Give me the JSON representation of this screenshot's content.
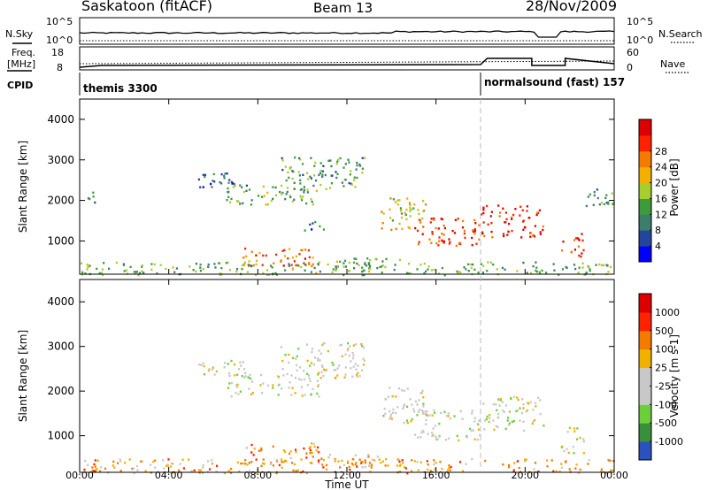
{
  "header": {
    "station": "Saskatoon (fitACF)",
    "beam": "Beam 13",
    "date": "28/Nov/2009"
  },
  "noise_panel": {
    "left_label": "N.Sky",
    "right_label": "N.Search",
    "left_ticks": [
      "10^5",
      "10^0"
    ],
    "right_ticks": [
      "10^5",
      "10^0"
    ]
  },
  "freq_panel": {
    "left_label_line1": "Freq.",
    "left_label_line2": "[MHz]",
    "right_label": "Nave",
    "left_ticks": [
      "18",
      "8"
    ],
    "right_ticks": [
      "60",
      "0"
    ]
  },
  "cpid": {
    "label": "CPID",
    "modes": [
      {
        "name": "themis 3300",
        "start_hour": 0,
        "end_hour": 18
      },
      {
        "name": "normalsound (fast) 157",
        "start_hour": 18,
        "end_hour": 24
      }
    ]
  },
  "chart_data": [
    {
      "type": "heatmap",
      "name": "power",
      "ylabel": "Slant Range [km]",
      "ylim": [
        180,
        4500
      ],
      "yticks": [
        1000,
        2000,
        3000,
        4000
      ],
      "xlim": [
        0,
        24
      ],
      "colorbar_label": "Power [dB]",
      "colorbar_ticks": [
        "4",
        "8",
        "12",
        "16",
        "20",
        "24",
        "28"
      ],
      "colors": [
        "#0000ff",
        "#22469e",
        "#3d7d6c",
        "#3d9b3d",
        "#a5ce2e",
        "#f4b000",
        "#f47a00",
        "#ff2200",
        "#dd0000"
      ],
      "regions": [
        {
          "x": [
            0.3,
            0.7
          ],
          "y": [
            1850,
            2250
          ],
          "level": 0.35
        },
        {
          "x": [
            5.3,
            7.5
          ],
          "y": [
            2300,
            2700
          ],
          "level": 0.2
        },
        {
          "x": [
            6.5,
            10.8
          ],
          "y": [
            1900,
            2400
          ],
          "level": 0.4
        },
        {
          "x": [
            9.0,
            12.8
          ],
          "y": [
            2300,
            3100
          ],
          "level": 0.35
        },
        {
          "x": [
            10.0,
            11.0
          ],
          "y": [
            1250,
            1500
          ],
          "level": 0.25
        },
        {
          "x": [
            7.3,
            10.8
          ],
          "y": [
            400,
            850
          ],
          "level": 0.75
        },
        {
          "x": [
            10.8,
            14.5
          ],
          "y": [
            350,
            600
          ],
          "level": 0.45
        },
        {
          "x": [
            13.5,
            15.5
          ],
          "y": [
            1300,
            2100
          ],
          "level": 0.55
        },
        {
          "x": [
            15.0,
            18.0
          ],
          "y": [
            900,
            1600
          ],
          "level": 0.85
        },
        {
          "x": [
            18.0,
            20.8
          ],
          "y": [
            1100,
            1900
          ],
          "level": 0.9
        },
        {
          "x": [
            21.6,
            22.6
          ],
          "y": [
            600,
            1200
          ],
          "level": 0.85
        },
        {
          "x": [
            22.7,
            24.0
          ],
          "y": [
            1800,
            2300
          ],
          "level": 0.35
        },
        {
          "x": [
            0.0,
            24.0
          ],
          "y": [
            180,
            500
          ],
          "level": 0.4
        }
      ]
    },
    {
      "type": "heatmap",
      "name": "velocity",
      "ylabel": "Slant Range [km]",
      "ylim": [
        180,
        4500
      ],
      "yticks": [
        1000,
        2000,
        3000,
        4000
      ],
      "xlim": [
        0,
        24
      ],
      "xticks": [
        "00:00",
        "04:00",
        "08:00",
        "12:00",
        "16:00",
        "20:00",
        "00:00"
      ],
      "xlabel": "Time UT",
      "colorbar_label": "Velocity [m s-1]",
      "colorbar_ticks": [
        "1000",
        "500",
        "100",
        "25",
        "-25",
        "-100",
        "-500",
        "-1000"
      ],
      "colors": [
        "#2a52be",
        "#3a8f3a",
        "#6ccf3a",
        "#c8c8c8",
        "#c8c8c8",
        "#f4b000",
        "#f47a00",
        "#ff2200",
        "#dd0000"
      ],
      "regions": [
        {
          "x": [
            5.3,
            7.5
          ],
          "y": [
            2300,
            2700
          ],
          "level": 0.45
        },
        {
          "x": [
            6.5,
            10.8
          ],
          "y": [
            1900,
            2400
          ],
          "level": 0.45
        },
        {
          "x": [
            9.0,
            12.8
          ],
          "y": [
            2300,
            3100
          ],
          "level": 0.45
        },
        {
          "x": [
            7.3,
            10.8
          ],
          "y": [
            400,
            850
          ],
          "level": 0.68
        },
        {
          "x": [
            10.8,
            14.5
          ],
          "y": [
            350,
            600
          ],
          "level": 0.6
        },
        {
          "x": [
            13.5,
            15.5
          ],
          "y": [
            1300,
            2100
          ],
          "level": 0.45
        },
        {
          "x": [
            15.0,
            18.0
          ],
          "y": [
            900,
            1600
          ],
          "level": 0.45
        },
        {
          "x": [
            18.0,
            20.8
          ],
          "y": [
            1100,
            1900
          ],
          "level": 0.45
        },
        {
          "x": [
            21.6,
            22.6
          ],
          "y": [
            600,
            1200
          ],
          "level": 0.45
        },
        {
          "x": [
            0.0,
            24.0
          ],
          "y": [
            180,
            500
          ],
          "level": 0.65
        }
      ]
    }
  ]
}
